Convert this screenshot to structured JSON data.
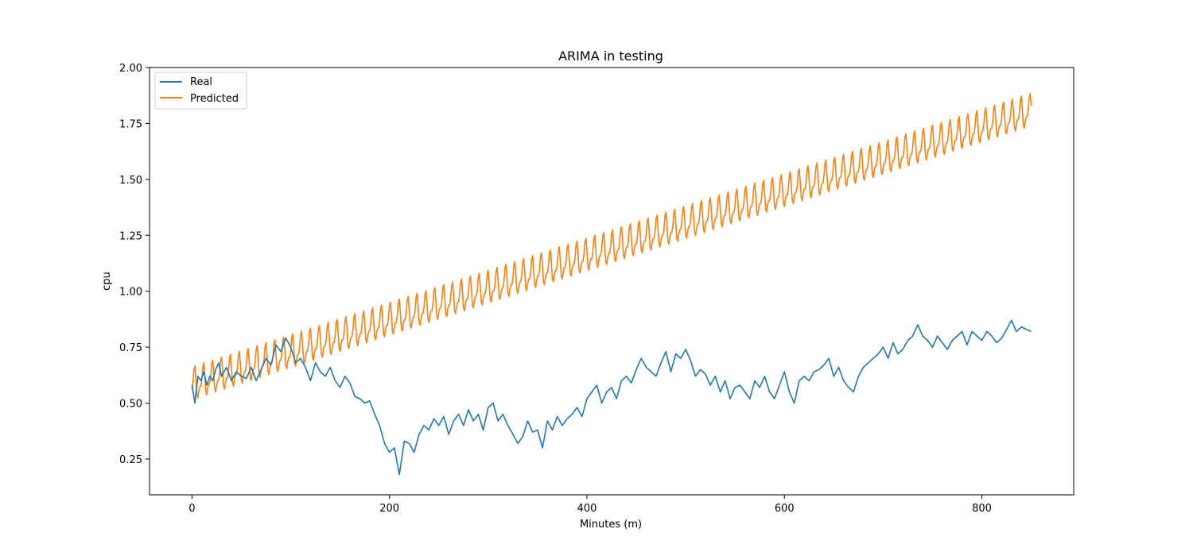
{
  "chart_data": {
    "type": "line",
    "title": "ARIMA in testing",
    "xlabel": "Minutes (m)",
    "ylabel": "cpu",
    "xlim": [
      -43,
      893
    ],
    "ylim": [
      0.09,
      2.0
    ],
    "xticks": [
      0,
      200,
      400,
      600,
      800
    ],
    "yticks": [
      0.25,
      0.5,
      0.75,
      1.0,
      1.25,
      1.5,
      1.75,
      2.0
    ],
    "ytick_labels": [
      "0.25",
      "0.50",
      "0.75",
      "1.00",
      "1.25",
      "1.50",
      "1.75",
      "2.00"
    ],
    "grid": false,
    "legend_position": "top-left",
    "series": [
      {
        "name": "Real",
        "color": "#1f77b4",
        "x": [
          0,
          3,
          6,
          9,
          12,
          15,
          18,
          21,
          24,
          27,
          30,
          35,
          40,
          45,
          50,
          55,
          60,
          65,
          70,
          75,
          80,
          85,
          90,
          95,
          100,
          105,
          110,
          115,
          120,
          125,
          130,
          135,
          140,
          145,
          150,
          155,
          160,
          165,
          170,
          175,
          180,
          185,
          190,
          195,
          200,
          205,
          210,
          215,
          220,
          225,
          230,
          235,
          240,
          245,
          250,
          255,
          260,
          265,
          270,
          275,
          280,
          285,
          290,
          295,
          300,
          305,
          310,
          315,
          320,
          325,
          330,
          335,
          340,
          345,
          350,
          355,
          360,
          365,
          370,
          375,
          380,
          385,
          390,
          395,
          400,
          405,
          410,
          415,
          420,
          425,
          430,
          435,
          440,
          445,
          450,
          455,
          460,
          465,
          470,
          475,
          480,
          485,
          490,
          495,
          500,
          505,
          510,
          515,
          520,
          525,
          530,
          535,
          540,
          545,
          550,
          555,
          560,
          565,
          570,
          575,
          580,
          585,
          590,
          595,
          600,
          605,
          610,
          615,
          620,
          625,
          630,
          635,
          640,
          645,
          650,
          655,
          660,
          665,
          670,
          675,
          680,
          685,
          690,
          695,
          700,
          705,
          710,
          715,
          720,
          725,
          730,
          735,
          740,
          745,
          750,
          755,
          760,
          765,
          770,
          775,
          780,
          785,
          790,
          795,
          800,
          805,
          810,
          815,
          820,
          825,
          830,
          835,
          840,
          845,
          850
        ],
        "y": [
          0.58,
          0.5,
          0.62,
          0.6,
          0.64,
          0.58,
          0.62,
          0.6,
          0.65,
          0.68,
          0.62,
          0.66,
          0.6,
          0.64,
          0.62,
          0.61,
          0.66,
          0.6,
          0.65,
          0.7,
          0.67,
          0.76,
          0.73,
          0.79,
          0.75,
          0.68,
          0.7,
          0.66,
          0.6,
          0.68,
          0.64,
          0.62,
          0.66,
          0.6,
          0.57,
          0.62,
          0.59,
          0.53,
          0.52,
          0.5,
          0.51,
          0.45,
          0.4,
          0.32,
          0.28,
          0.3,
          0.18,
          0.33,
          0.32,
          0.28,
          0.36,
          0.4,
          0.38,
          0.43,
          0.4,
          0.44,
          0.36,
          0.42,
          0.45,
          0.4,
          0.47,
          0.42,
          0.45,
          0.38,
          0.48,
          0.5,
          0.42,
          0.45,
          0.4,
          0.36,
          0.32,
          0.35,
          0.42,
          0.37,
          0.38,
          0.3,
          0.42,
          0.38,
          0.44,
          0.4,
          0.43,
          0.45,
          0.48,
          0.44,
          0.52,
          0.55,
          0.58,
          0.5,
          0.55,
          0.57,
          0.52,
          0.6,
          0.62,
          0.59,
          0.65,
          0.7,
          0.66,
          0.64,
          0.62,
          0.68,
          0.73,
          0.64,
          0.72,
          0.7,
          0.74,
          0.69,
          0.62,
          0.65,
          0.63,
          0.58,
          0.62,
          0.55,
          0.6,
          0.52,
          0.57,
          0.58,
          0.55,
          0.52,
          0.6,
          0.57,
          0.62,
          0.55,
          0.52,
          0.58,
          0.64,
          0.55,
          0.5,
          0.6,
          0.62,
          0.6,
          0.64,
          0.65,
          0.67,
          0.7,
          0.62,
          0.66,
          0.6,
          0.57,
          0.55,
          0.62,
          0.66,
          0.68,
          0.7,
          0.72,
          0.75,
          0.7,
          0.77,
          0.72,
          0.74,
          0.78,
          0.8,
          0.85,
          0.8,
          0.78,
          0.75,
          0.8,
          0.77,
          0.74,
          0.78,
          0.8,
          0.82,
          0.76,
          0.82,
          0.8,
          0.78,
          0.82,
          0.8,
          0.77,
          0.79,
          0.83,
          0.87,
          0.82,
          0.84,
          0.83,
          0.82
        ]
      },
      {
        "name": "Predicted",
        "color": "#ff7f0e",
        "start_level": 0.6,
        "slope_per_minute": 0.00144,
        "cycle_minutes": 9,
        "cycle_amplitude": 0.06,
        "x_start": 0,
        "x_end": 850
      }
    ]
  }
}
